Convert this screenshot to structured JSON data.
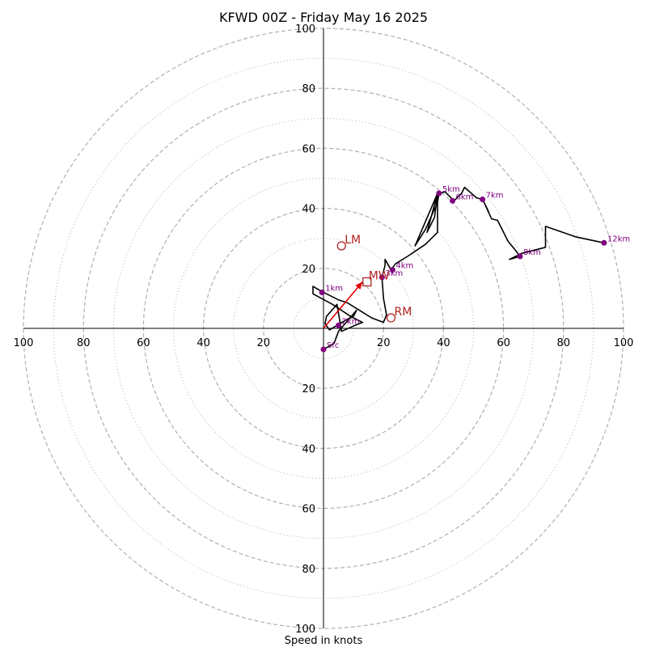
{
  "chart_data": {
    "type": "line",
    "title": "KFWD 00Z - Friday May 16 2025",
    "xlabel": "Speed in knots",
    "ring_labels": [
      "20",
      "40",
      "60",
      "80",
      "100"
    ],
    "rings_dashed": [
      20,
      40,
      60,
      80,
      100
    ],
    "rings_dotted": [
      10,
      30,
      50,
      70,
      90
    ],
    "xlim": [
      -100,
      100
    ],
    "ylim": [
      -100,
      100
    ],
    "colors": {
      "trace": "#000000",
      "height_marker": "#800080",
      "storm_motion": "#b22222",
      "mean_wind": "#b22222",
      "shear_vector": "#e00000",
      "ring": "#b0b0b0"
    },
    "series": [
      {
        "points": [
          [
            0.0,
            -7.0
          ],
          [
            3.5,
            -5.0
          ],
          [
            5.0,
            -1.0
          ],
          [
            11.0,
            6.0
          ],
          [
            10.0,
            4.0
          ],
          [
            7.0,
            2.5
          ],
          [
            2.0,
            -0.5
          ],
          [
            0.5,
            1.5
          ],
          [
            1.0,
            4.0
          ],
          [
            4.5,
            8.0
          ],
          [
            6.0,
            -1.0
          ],
          [
            10.5,
            1.0
          ],
          [
            13.0,
            2.0
          ],
          [
            9.0,
            4.0
          ],
          [
            4.5,
            7.0
          ],
          [
            3.0,
            8.0
          ],
          [
            -3.5,
            11.5
          ],
          [
            -3.5,
            14.0
          ],
          [
            -1.0,
            12.5
          ],
          [
            1.0,
            11.5
          ],
          [
            5.0,
            9.5
          ],
          [
            8.0,
            8.5
          ],
          [
            12.0,
            6.0
          ],
          [
            16.0,
            3.5
          ],
          [
            20.0,
            2.0
          ],
          [
            21.0,
            4.5
          ],
          [
            20.0,
            10.0
          ],
          [
            19.5,
            17.0
          ],
          [
            20.5,
            21.0
          ],
          [
            20.5,
            23.0
          ],
          [
            22.5,
            19.5
          ],
          [
            24.0,
            21.5
          ],
          [
            28.0,
            24.0
          ],
          [
            34.0,
            28.0
          ],
          [
            38.0,
            32.0
          ],
          [
            38.0,
            45.0
          ],
          [
            34.5,
            32.0
          ],
          [
            37.0,
            37.0
          ],
          [
            38.0,
            45.0
          ],
          [
            30.5,
            27.5
          ],
          [
            34.0,
            33.0
          ],
          [
            38.0,
            42.0
          ],
          [
            38.5,
            45.0
          ],
          [
            40.5,
            45.5
          ],
          [
            43.5,
            42.5
          ],
          [
            46.0,
            45.0
          ],
          [
            47.0,
            47.0
          ],
          [
            51.0,
            43.5
          ],
          [
            53.0,
            43.0
          ],
          [
            55.0,
            39.0
          ],
          [
            53.5,
            42.0
          ],
          [
            56.0,
            36.5
          ],
          [
            58.0,
            36.0
          ],
          [
            61.5,
            29.0
          ],
          [
            64.0,
            26.0
          ],
          [
            65.5,
            24.0
          ],
          [
            62.0,
            23.0
          ],
          [
            66.0,
            25.0
          ],
          [
            74.0,
            27.0
          ],
          [
            74.0,
            34.0
          ],
          [
            84.0,
            30.5
          ],
          [
            93.5,
            28.5
          ]
        ]
      }
    ],
    "height_markers": [
      {
        "label": "Sfc",
        "x": 0.0,
        "y": -7.0
      },
      {
        "label": "1km",
        "x": -0.5,
        "y": 12.0
      },
      {
        "label": "2km",
        "x": 5.0,
        "y": 1.0
      },
      {
        "label": "3km",
        "x": 19.5,
        "y": 17.0
      },
      {
        "label": "4km",
        "x": 23.0,
        "y": 19.5
      },
      {
        "label": "5km",
        "x": 38.5,
        "y": 45.0
      },
      {
        "label": "6km",
        "x": 43.0,
        "y": 42.5
      },
      {
        "label": "7km",
        "x": 53.0,
        "y": 43.0
      },
      {
        "label": "8km",
        "x": 65.5,
        "y": 24.0
      },
      {
        "label": "12km",
        "x": 93.5,
        "y": 28.5
      }
    ],
    "storm_motions": [
      {
        "label": "LM",
        "x": 6.0,
        "y": 27.5
      },
      {
        "label": "RM",
        "x": 22.5,
        "y": 3.5
      }
    ],
    "mean_wind": {
      "label": "MW",
      "x": 14.5,
      "y": 15.5
    },
    "shear_vector": {
      "from": [
        0.0,
        0.0
      ],
      "to": [
        13.0,
        15.5
      ]
    }
  }
}
